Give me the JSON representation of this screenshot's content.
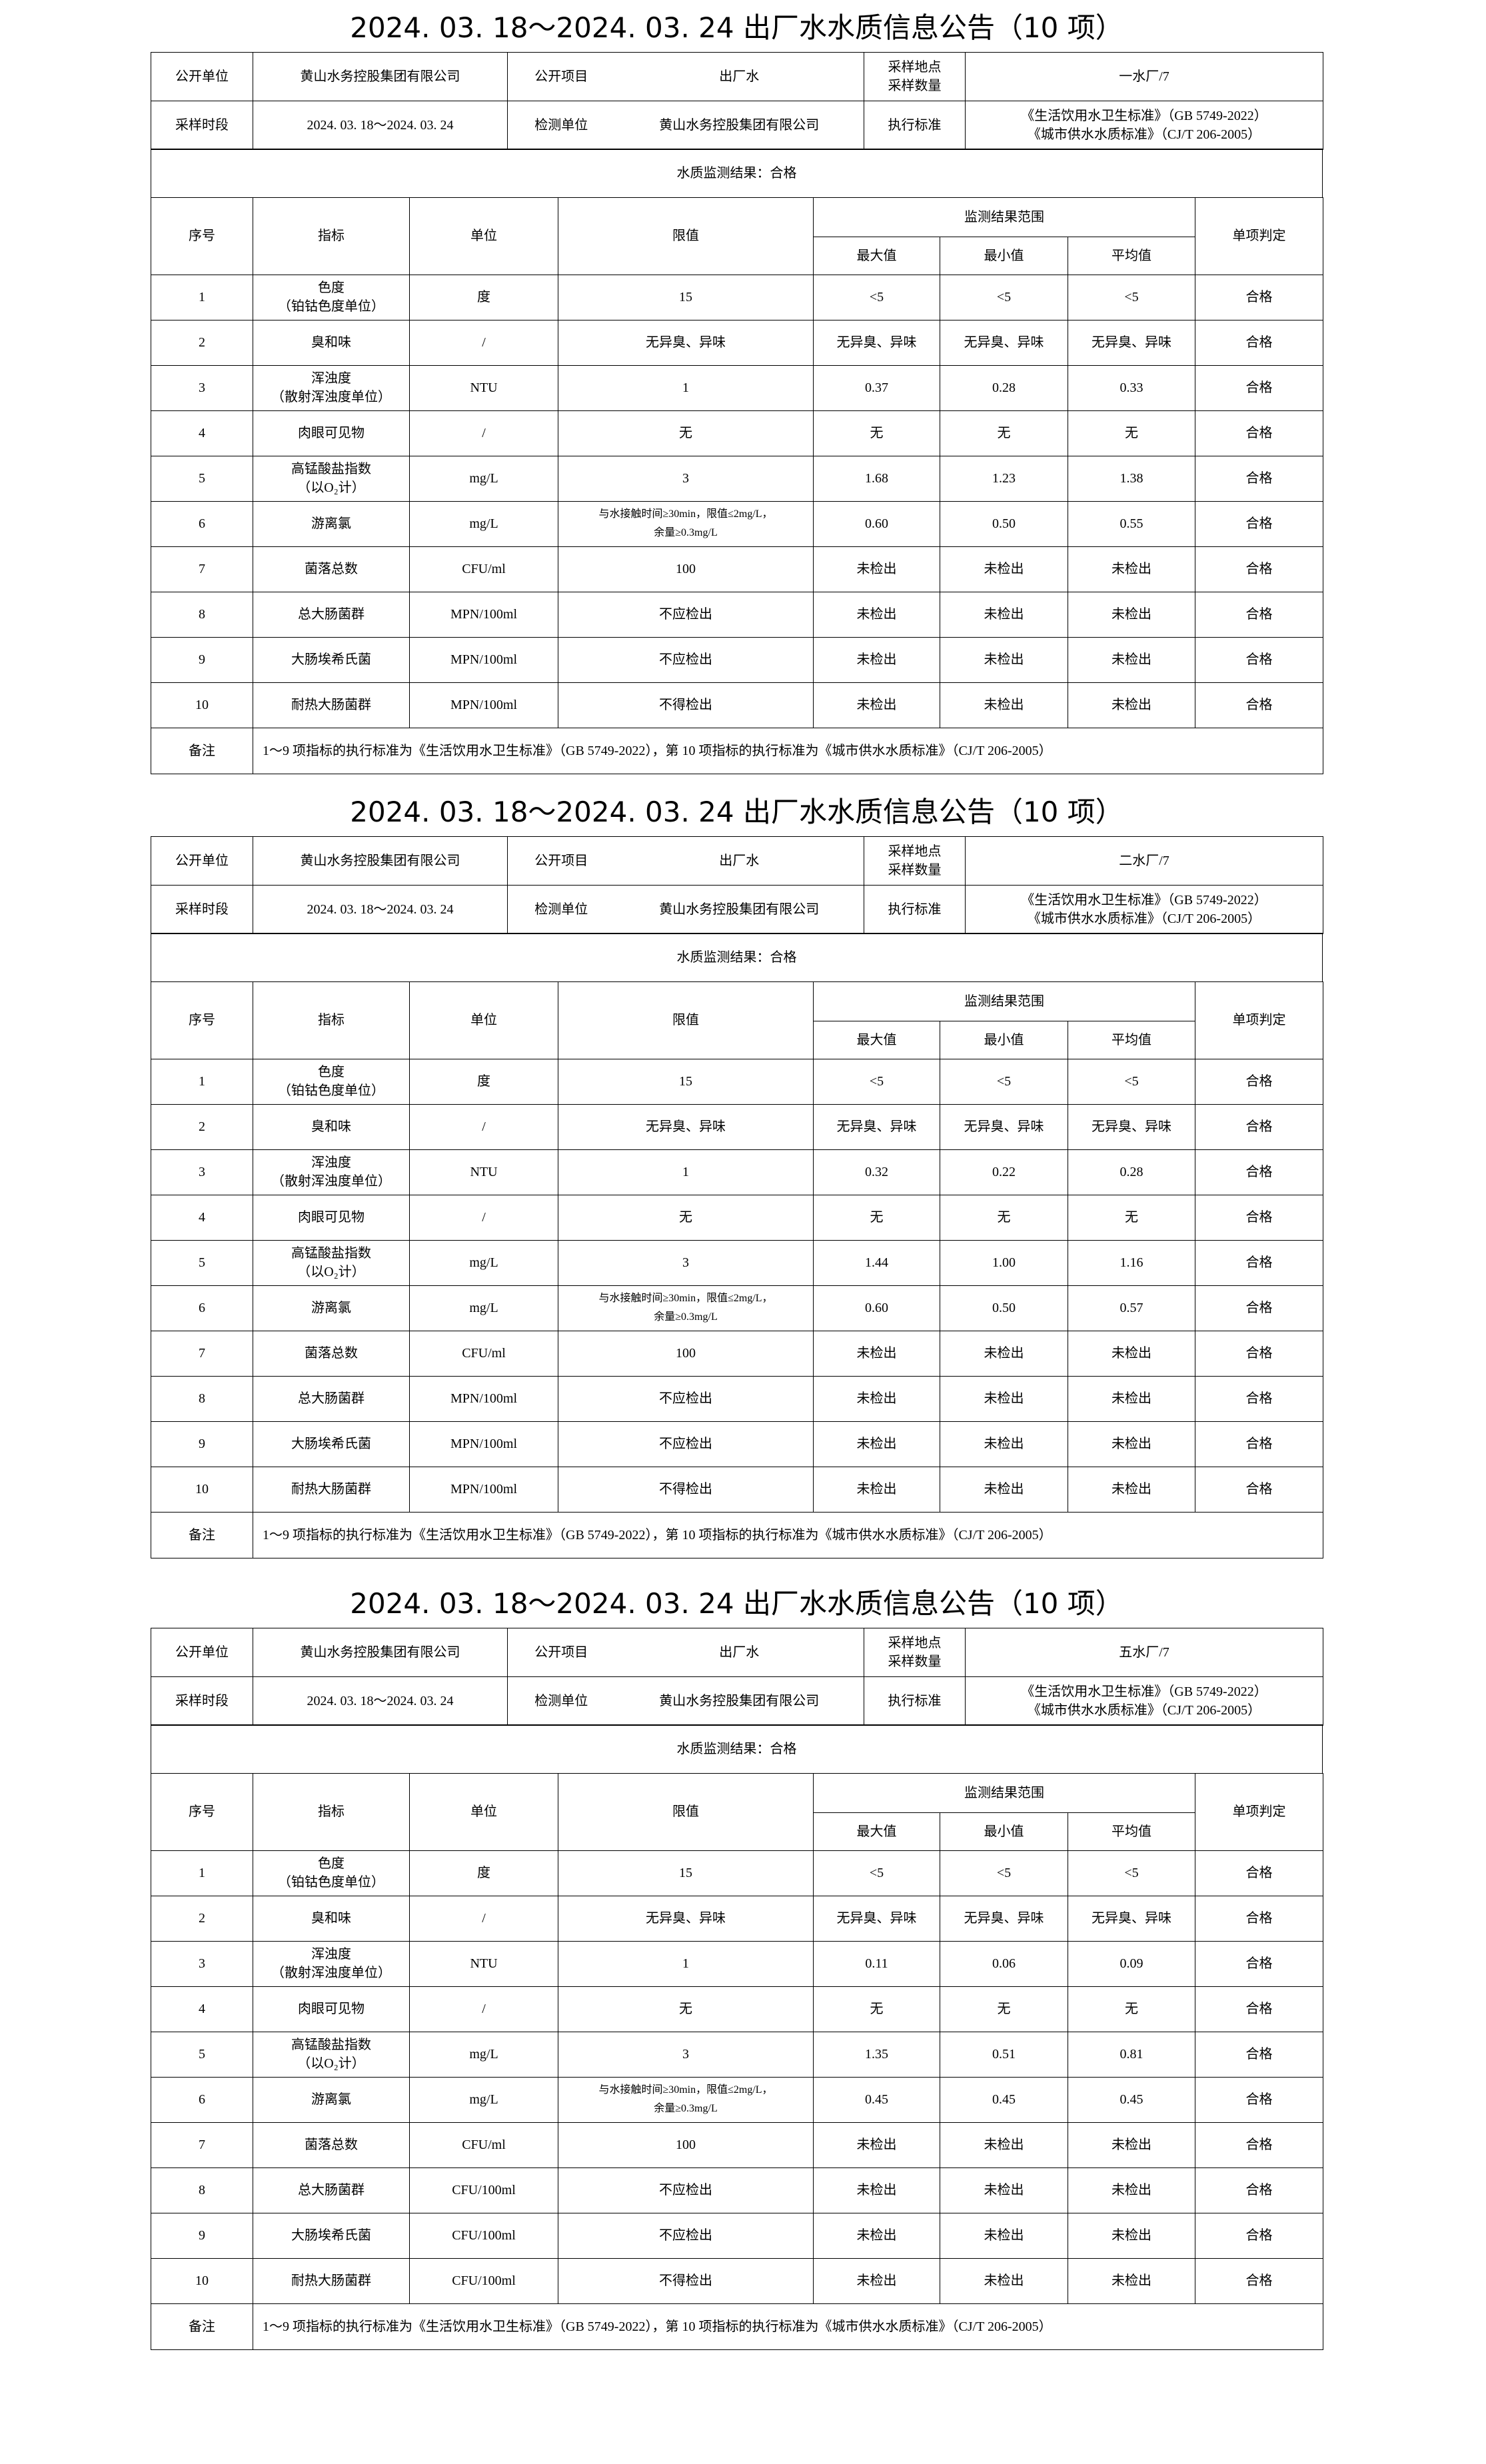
{
  "labels": {
    "publisher": "公开单位",
    "item": "公开项目",
    "location_count": [
      "采样地点",
      "采样数量"
    ],
    "period": "采样时段",
    "lab": "检测单位",
    "standard": "执行标准",
    "no": "序号",
    "indicator": "指标",
    "unit": "单位",
    "limit": "限值",
    "range": "监测结果范围",
    "max": "最大值",
    "min": "最小值",
    "avg": "平均值",
    "verdict": "单项判定",
    "remark": "备注"
  },
  "tables": [
    {
      "title": "2024. 03. 18～2024. 03. 24 出厂水水质信息公告（10 项）",
      "publisher": "黄山水务控股集团有限公司",
      "item": "出厂水",
      "location_count": "一水厂/7",
      "period": "2024. 03. 18～2024. 03. 24",
      "lab": "黄山水务控股集团有限公司",
      "standards": [
        "《生活饮用水卫生标准》（GB 5749-2022）",
        "《城市供水水质标准》（CJ/T 206-2005）"
      ],
      "result": "水质监测结果：合格",
      "rows": [
        {
          "no": "1",
          "indicator": [
            "色度",
            "（铂钴色度单位）"
          ],
          "unit": "度",
          "limit": [
            "15"
          ],
          "max": "<5",
          "min": "<5",
          "avg": "<5",
          "verdict": "合格"
        },
        {
          "no": "2",
          "indicator": [
            "臭和味"
          ],
          "unit": "/",
          "limit": [
            "无异臭、异味"
          ],
          "max": "无异臭、异味",
          "min": "无异臭、异味",
          "avg": "无异臭、异味",
          "verdict": "合格"
        },
        {
          "no": "3",
          "indicator": [
            "浑浊度",
            "（散射浑浊度单位）"
          ],
          "unit": "NTU",
          "limit": [
            "1"
          ],
          "max": "0.37",
          "min": "0.28",
          "avg": "0.33",
          "verdict": "合格"
        },
        {
          "no": "4",
          "indicator": [
            "肉眼可见物"
          ],
          "unit": "/",
          "limit": [
            "无"
          ],
          "max": "无",
          "min": "无",
          "avg": "无",
          "verdict": "合格"
        },
        {
          "no": "5",
          "indicator": [
            "高锰酸盐指数",
            "（以O₂计）"
          ],
          "unit": "mg/L",
          "limit": [
            "3"
          ],
          "max": "1.68",
          "min": "1.23",
          "avg": "1.38",
          "verdict": "合格"
        },
        {
          "no": "6",
          "indicator": [
            "游离氯"
          ],
          "unit": "mg/L",
          "limit": [
            "与水接触时间≥30min，限值≤2mg/L，",
            "余量≥0.3mg/L"
          ],
          "max": "0.60",
          "min": "0.50",
          "avg": "0.55",
          "verdict": "合格"
        },
        {
          "no": "7",
          "indicator": [
            "菌落总数"
          ],
          "unit": "CFU/ml",
          "limit": [
            "100"
          ],
          "max": "未检出",
          "min": "未检出",
          "avg": "未检出",
          "verdict": "合格"
        },
        {
          "no": "8",
          "indicator": [
            "总大肠菌群"
          ],
          "unit": "MPN/100ml",
          "limit": [
            "不应检出"
          ],
          "max": "未检出",
          "min": "未检出",
          "avg": "未检出",
          "verdict": "合格"
        },
        {
          "no": "9",
          "indicator": [
            "大肠埃希氏菌"
          ],
          "unit": "MPN/100ml",
          "limit": [
            "不应检出"
          ],
          "max": "未检出",
          "min": "未检出",
          "avg": "未检出",
          "verdict": "合格"
        },
        {
          "no": "10",
          "indicator": [
            "耐热大肠菌群"
          ],
          "unit": "MPN/100ml",
          "limit": [
            "不得检出"
          ],
          "max": "未检出",
          "min": "未检出",
          "avg": "未检出",
          "verdict": "合格"
        }
      ],
      "remark": "1～9 项指标的执行标准为《生活饮用水卫生标准》（GB 5749-2022），第 10 项指标的执行标准为《城市供水水质标准》（CJ/T 206-2005）"
    },
    {
      "title": "2024. 03. 18～2024. 03. 24 出厂水水质信息公告（10 项）",
      "publisher": "黄山水务控股集团有限公司",
      "item": "出厂水",
      "location_count": "二水厂/7",
      "period": "2024. 03. 18～2024. 03. 24",
      "lab": "黄山水务控股集团有限公司",
      "standards": [
        "《生活饮用水卫生标准》（GB 5749-2022）",
        "《城市供水水质标准》（CJ/T 206-2005）"
      ],
      "result": "水质监测结果：合格",
      "rows": [
        {
          "no": "1",
          "indicator": [
            "色度",
            "（铂钴色度单位）"
          ],
          "unit": "度",
          "limit": [
            "15"
          ],
          "max": "<5",
          "min": "<5",
          "avg": "<5",
          "verdict": "合格"
        },
        {
          "no": "2",
          "indicator": [
            "臭和味"
          ],
          "unit": "/",
          "limit": [
            "无异臭、异味"
          ],
          "max": "无异臭、异味",
          "min": "无异臭、异味",
          "avg": "无异臭、异味",
          "verdict": "合格"
        },
        {
          "no": "3",
          "indicator": [
            "浑浊度",
            "（散射浑浊度单位）"
          ],
          "unit": "NTU",
          "limit": [
            "1"
          ],
          "max": "0.32",
          "min": "0.22",
          "avg": "0.28",
          "verdict": "合格"
        },
        {
          "no": "4",
          "indicator": [
            "肉眼可见物"
          ],
          "unit": "/",
          "limit": [
            "无"
          ],
          "max": "无",
          "min": "无",
          "avg": "无",
          "verdict": "合格"
        },
        {
          "no": "5",
          "indicator": [
            "高锰酸盐指数",
            "（以O₂计）"
          ],
          "unit": "mg/L",
          "limit": [
            "3"
          ],
          "max": "1.44",
          "min": "1.00",
          "avg": "1.16",
          "verdict": "合格"
        },
        {
          "no": "6",
          "indicator": [
            "游离氯"
          ],
          "unit": "mg/L",
          "limit": [
            "与水接触时间≥30min，限值≤2mg/L，",
            "余量≥0.3mg/L"
          ],
          "max": "0.60",
          "min": "0.50",
          "avg": "0.57",
          "verdict": "合格"
        },
        {
          "no": "7",
          "indicator": [
            "菌落总数"
          ],
          "unit": "CFU/ml",
          "limit": [
            "100"
          ],
          "max": "未检出",
          "min": "未检出",
          "avg": "未检出",
          "verdict": "合格"
        },
        {
          "no": "8",
          "indicator": [
            "总大肠菌群"
          ],
          "unit": "MPN/100ml",
          "limit": [
            "不应检出"
          ],
          "max": "未检出",
          "min": "未检出",
          "avg": "未检出",
          "verdict": "合格"
        },
        {
          "no": "9",
          "indicator": [
            "大肠埃希氏菌"
          ],
          "unit": "MPN/100ml",
          "limit": [
            "不应检出"
          ],
          "max": "未检出",
          "min": "未检出",
          "avg": "未检出",
          "verdict": "合格"
        },
        {
          "no": "10",
          "indicator": [
            "耐热大肠菌群"
          ],
          "unit": "MPN/100ml",
          "limit": [
            "不得检出"
          ],
          "max": "未检出",
          "min": "未检出",
          "avg": "未检出",
          "verdict": "合格"
        }
      ],
      "remark": "1～9 项指标的执行标准为《生活饮用水卫生标准》（GB 5749-2022），第 10 项指标的执行标准为《城市供水水质标准》（CJ/T 206-2005）"
    },
    {
      "title": "2024. 03. 18～2024. 03. 24 出厂水水质信息公告（10 项）",
      "publisher": "黄山水务控股集团有限公司",
      "item": "出厂水",
      "location_count": "五水厂/7",
      "period": "2024. 03. 18～2024. 03. 24",
      "lab": "黄山水务控股集团有限公司",
      "standards": [
        "《生活饮用水卫生标准》（GB 5749-2022）",
        "《城市供水水质标准》（CJ/T 206-2005）"
      ],
      "result": "水质监测结果：合格",
      "rows": [
        {
          "no": "1",
          "indicator": [
            "色度",
            "（铂钴色度单位）"
          ],
          "unit": "度",
          "limit": [
            "15"
          ],
          "max": "<5",
          "min": "<5",
          "avg": "<5",
          "verdict": "合格"
        },
        {
          "no": "2",
          "indicator": [
            "臭和味"
          ],
          "unit": "/",
          "limit": [
            "无异臭、异味"
          ],
          "max": "无异臭、异味",
          "min": "无异臭、异味",
          "avg": "无异臭、异味",
          "verdict": "合格"
        },
        {
          "no": "3",
          "indicator": [
            "浑浊度",
            "（散射浑浊度单位）"
          ],
          "unit": "NTU",
          "limit": [
            "1"
          ],
          "max": "0.11",
          "min": "0.06",
          "avg": "0.09",
          "verdict": "合格"
        },
        {
          "no": "4",
          "indicator": [
            "肉眼可见物"
          ],
          "unit": "/",
          "limit": [
            "无"
          ],
          "max": "无",
          "min": "无",
          "avg": "无",
          "verdict": "合格"
        },
        {
          "no": "5",
          "indicator": [
            "高锰酸盐指数",
            "（以O₂计）"
          ],
          "unit": "mg/L",
          "limit": [
            "3"
          ],
          "max": "1.35",
          "min": "0.51",
          "avg": "0.81",
          "verdict": "合格"
        },
        {
          "no": "6",
          "indicator": [
            "游离氯"
          ],
          "unit": "mg/L",
          "limit": [
            "与水接触时间≥30min，限值≤2mg/L，",
            "余量≥0.3mg/L"
          ],
          "max": "0.45",
          "min": "0.45",
          "avg": "0.45",
          "verdict": "合格"
        },
        {
          "no": "7",
          "indicator": [
            "菌落总数"
          ],
          "unit": "CFU/ml",
          "limit": [
            "100"
          ],
          "max": "未检出",
          "min": "未检出",
          "avg": "未检出",
          "verdict": "合格"
        },
        {
          "no": "8",
          "indicator": [
            "总大肠菌群"
          ],
          "unit": "CFU/100ml",
          "limit": [
            "不应检出"
          ],
          "max": "未检出",
          "min": "未检出",
          "avg": "未检出",
          "verdict": "合格"
        },
        {
          "no": "9",
          "indicator": [
            "大肠埃希氏菌"
          ],
          "unit": "CFU/100ml",
          "limit": [
            "不应检出"
          ],
          "max": "未检出",
          "min": "未检出",
          "avg": "未检出",
          "verdict": "合格"
        },
        {
          "no": "10",
          "indicator": [
            "耐热大肠菌群"
          ],
          "unit": "CFU/100ml",
          "limit": [
            "不得检出"
          ],
          "max": "未检出",
          "min": "未检出",
          "avg": "未检出",
          "verdict": "合格"
        }
      ],
      "remark": "1～9 项指标的执行标准为《生活饮用水卫生标准》（GB 5749-2022），第 10 项指标的执行标准为《城市供水水质标准》（CJ/T 206-2005）"
    }
  ]
}
